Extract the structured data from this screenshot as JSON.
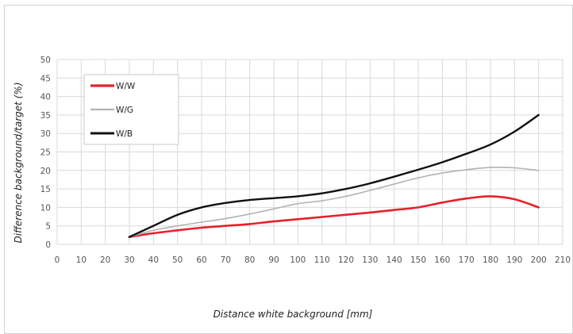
{
  "chart_data": {
    "type": "line",
    "xlabel": "Distance white background [mm]",
    "ylabel": "Difference background/target (%)",
    "xlim": [
      0,
      210
    ],
    "ylim": [
      0,
      50
    ],
    "xticks": [
      0,
      10,
      20,
      30,
      40,
      50,
      60,
      70,
      80,
      90,
      100,
      110,
      120,
      130,
      140,
      150,
      160,
      170,
      180,
      190,
      200,
      210
    ],
    "yticks": [
      0,
      5,
      10,
      15,
      20,
      25,
      30,
      35,
      40,
      45,
      50
    ],
    "grid": true,
    "legend_position": "top-left",
    "series": [
      {
        "name": "W/W",
        "color": "#e8202a",
        "width": 2.6,
        "points": [
          [
            30,
            2
          ],
          [
            40,
            3
          ],
          [
            50,
            3.8
          ],
          [
            60,
            4.5
          ],
          [
            70,
            5
          ],
          [
            80,
            5.5
          ],
          [
            90,
            6.2
          ],
          [
            100,
            6.8
          ],
          [
            110,
            7.4
          ],
          [
            120,
            8
          ],
          [
            130,
            8.6
          ],
          [
            140,
            9.3
          ],
          [
            150,
            10
          ],
          [
            160,
            11.3
          ],
          [
            170,
            12.4
          ],
          [
            180,
            13
          ],
          [
            190,
            12.2
          ],
          [
            200,
            10
          ]
        ]
      },
      {
        "name": "W/G",
        "color": "#b3b3b3",
        "width": 1.6,
        "points": [
          [
            30,
            2
          ],
          [
            40,
            3.8
          ],
          [
            50,
            5
          ],
          [
            60,
            6
          ],
          [
            70,
            7
          ],
          [
            80,
            8.2
          ],
          [
            90,
            9.6
          ],
          [
            100,
            11
          ],
          [
            110,
            11.8
          ],
          [
            120,
            13
          ],
          [
            130,
            14.6
          ],
          [
            140,
            16.3
          ],
          [
            150,
            18
          ],
          [
            160,
            19.3
          ],
          [
            170,
            20.2
          ],
          [
            180,
            20.8
          ],
          [
            190,
            20.7
          ],
          [
            200,
            20
          ]
        ]
      },
      {
        "name": "W/B",
        "color": "#111111",
        "width": 2.4,
        "points": [
          [
            30,
            2
          ],
          [
            40,
            5
          ],
          [
            50,
            8
          ],
          [
            60,
            10
          ],
          [
            70,
            11.2
          ],
          [
            80,
            12
          ],
          [
            90,
            12.5
          ],
          [
            100,
            13
          ],
          [
            110,
            13.8
          ],
          [
            120,
            15
          ],
          [
            130,
            16.5
          ],
          [
            140,
            18.3
          ],
          [
            150,
            20.2
          ],
          [
            160,
            22.2
          ],
          [
            170,
            24.5
          ],
          [
            180,
            27
          ],
          [
            190,
            30.5
          ],
          [
            200,
            35
          ]
        ]
      }
    ]
  }
}
